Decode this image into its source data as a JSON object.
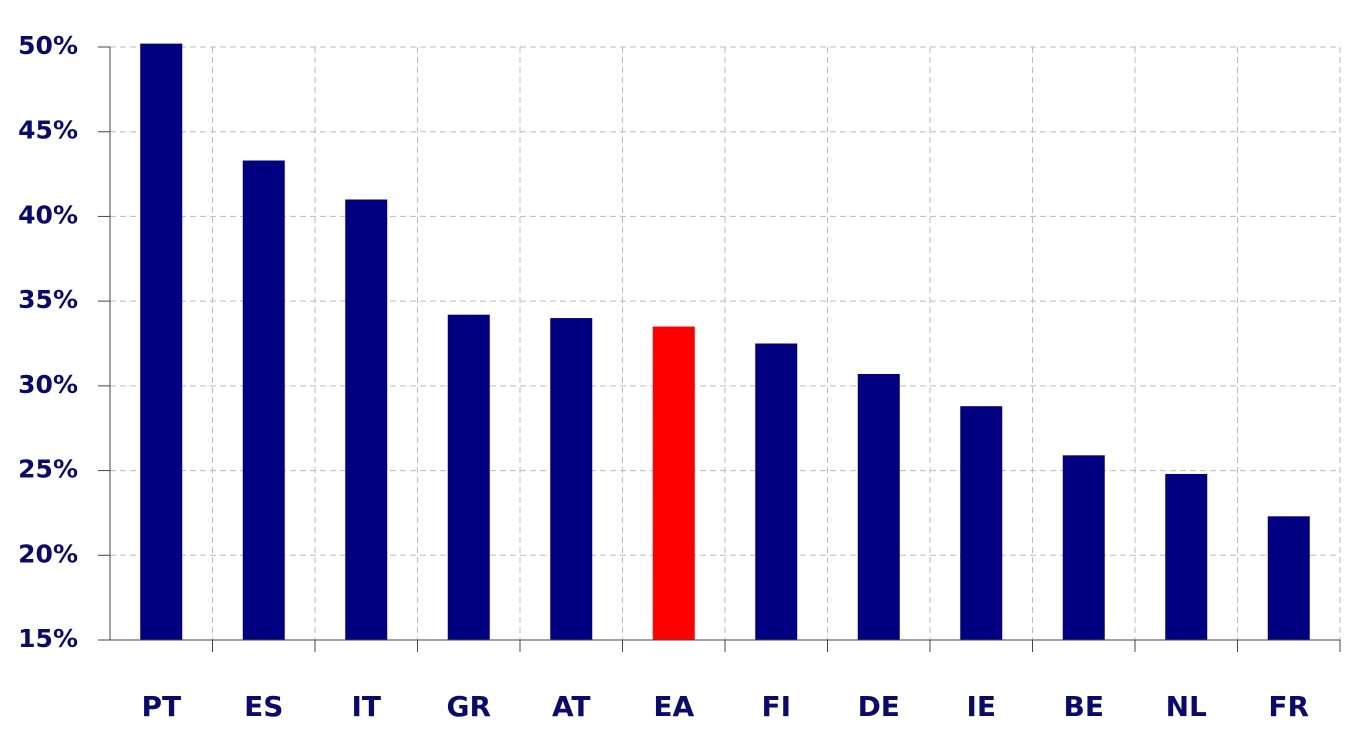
{
  "chart_data": {
    "type": "bar",
    "categories": [
      "PT",
      "ES",
      "IT",
      "GR",
      "AT",
      "EA",
      "FI",
      "DE",
      "IE",
      "BE",
      "NL",
      "FR"
    ],
    "values": [
      50.2,
      43.3,
      41.0,
      34.2,
      34.0,
      33.5,
      32.5,
      30.7,
      28.8,
      25.9,
      24.8,
      22.3
    ],
    "colors": [
      "#000080",
      "#000080",
      "#000080",
      "#000080",
      "#000080",
      "#ff0000",
      "#000080",
      "#000080",
      "#000080",
      "#000080",
      "#000080",
      "#000080"
    ],
    "ylim": [
      15,
      50
    ],
    "yticks": [
      {
        "value": 15,
        "label": "15%"
      },
      {
        "value": 20,
        "label": "20%"
      },
      {
        "value": 25,
        "label": "25%"
      },
      {
        "value": 30,
        "label": "30%"
      },
      {
        "value": 35,
        "label": "35%"
      },
      {
        "value": 40,
        "label": "40%"
      },
      {
        "value": 45,
        "label": "45%"
      },
      {
        "value": 50,
        "label": "50%"
      }
    ],
    "grid": true
  }
}
